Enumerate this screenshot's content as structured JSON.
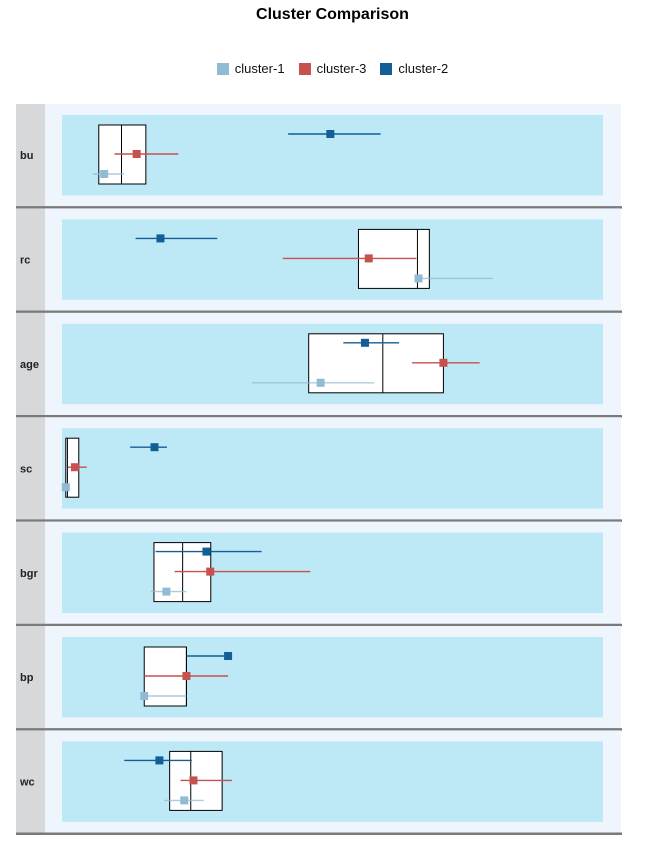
{
  "chart_data": {
    "type": "forest-box",
    "title": "Cluster Comparison",
    "legend": [
      {
        "name": "cluster-1",
        "color": "#8fbcd4"
      },
      {
        "name": "cluster-3",
        "color": "#c6514f"
      },
      {
        "name": "cluster-2",
        "color": "#135e96"
      }
    ],
    "legend_position": "top",
    "xlim": [
      0,
      1
    ],
    "grid": false,
    "rows": [
      {
        "label": "bu",
        "box": {
          "q1": 0.068,
          "median": 0.11,
          "q3": 0.155
        },
        "series": [
          {
            "name": "cluster-2",
            "mean": 0.496,
            "low": 0.418,
            "high": 0.589
          },
          {
            "name": "cluster-3",
            "mean": 0.138,
            "low": 0.097,
            "high": 0.215
          },
          {
            "name": "cluster-1",
            "mean": 0.078,
            "low": 0.057,
            "high": 0.115
          }
        ]
      },
      {
        "label": "rc",
        "box": {
          "q1": 0.548,
          "median": 0.657,
          "q3": 0.679
        },
        "series": [
          {
            "name": "cluster-2",
            "mean": 0.182,
            "low": 0.136,
            "high": 0.287
          },
          {
            "name": "cluster-3",
            "mean": 0.567,
            "low": 0.408,
            "high": 0.655
          },
          {
            "name": "cluster-1",
            "mean": 0.659,
            "low": 0.659,
            "high": 0.796
          }
        ]
      },
      {
        "label": "age",
        "box": {
          "q1": 0.456,
          "median": 0.593,
          "q3": 0.705
        },
        "series": [
          {
            "name": "cluster-2",
            "mean": 0.56,
            "low": 0.52,
            "high": 0.623
          },
          {
            "name": "cluster-3",
            "mean": 0.705,
            "low": 0.647,
            "high": 0.772
          },
          {
            "name": "cluster-1",
            "mean": 0.478,
            "low": 0.351,
            "high": 0.577
          }
        ]
      },
      {
        "label": "sc",
        "box": {
          "q1": 0.007,
          "median": 0.01,
          "q3": 0.031
        },
        "series": [
          {
            "name": "cluster-2",
            "mean": 0.171,
            "low": 0.126,
            "high": 0.194
          },
          {
            "name": "cluster-3",
            "mean": 0.024,
            "low": 0.011,
            "high": 0.046
          },
          {
            "name": "cluster-1",
            "mean": 0.007,
            "low": 0.004,
            "high": 0.011
          }
        ]
      },
      {
        "label": "bgr",
        "box": {
          "q1": 0.17,
          "median": 0.223,
          "q3": 0.275
        },
        "series": [
          {
            "name": "cluster-2",
            "mean": 0.267,
            "low": 0.173,
            "high": 0.369
          },
          {
            "name": "cluster-3",
            "mean": 0.274,
            "low": 0.208,
            "high": 0.459
          },
          {
            "name": "cluster-1",
            "mean": 0.193,
            "low": 0.164,
            "high": 0.23
          }
        ]
      },
      {
        "label": "bp",
        "box": {
          "q1": 0.152,
          "median": 0.23,
          "q3": 0.23
        },
        "series": [
          {
            "name": "cluster-2",
            "mean": 0.307,
            "low": 0.23,
            "high": 0.307
          },
          {
            "name": "cluster-3",
            "mean": 0.23,
            "low": 0.152,
            "high": 0.307
          },
          {
            "name": "cluster-1",
            "mean": 0.152,
            "low": 0.152,
            "high": 0.23
          }
        ]
      },
      {
        "label": "wc",
        "box": {
          "q1": 0.199,
          "median": 0.238,
          "q3": 0.296
        },
        "series": [
          {
            "name": "cluster-2",
            "mean": 0.18,
            "low": 0.115,
            "high": 0.24
          },
          {
            "name": "cluster-3",
            "mean": 0.243,
            "low": 0.219,
            "high": 0.314
          },
          {
            "name": "cluster-1",
            "mean": 0.226,
            "low": 0.189,
            "high": 0.262
          }
        ]
      }
    ]
  }
}
